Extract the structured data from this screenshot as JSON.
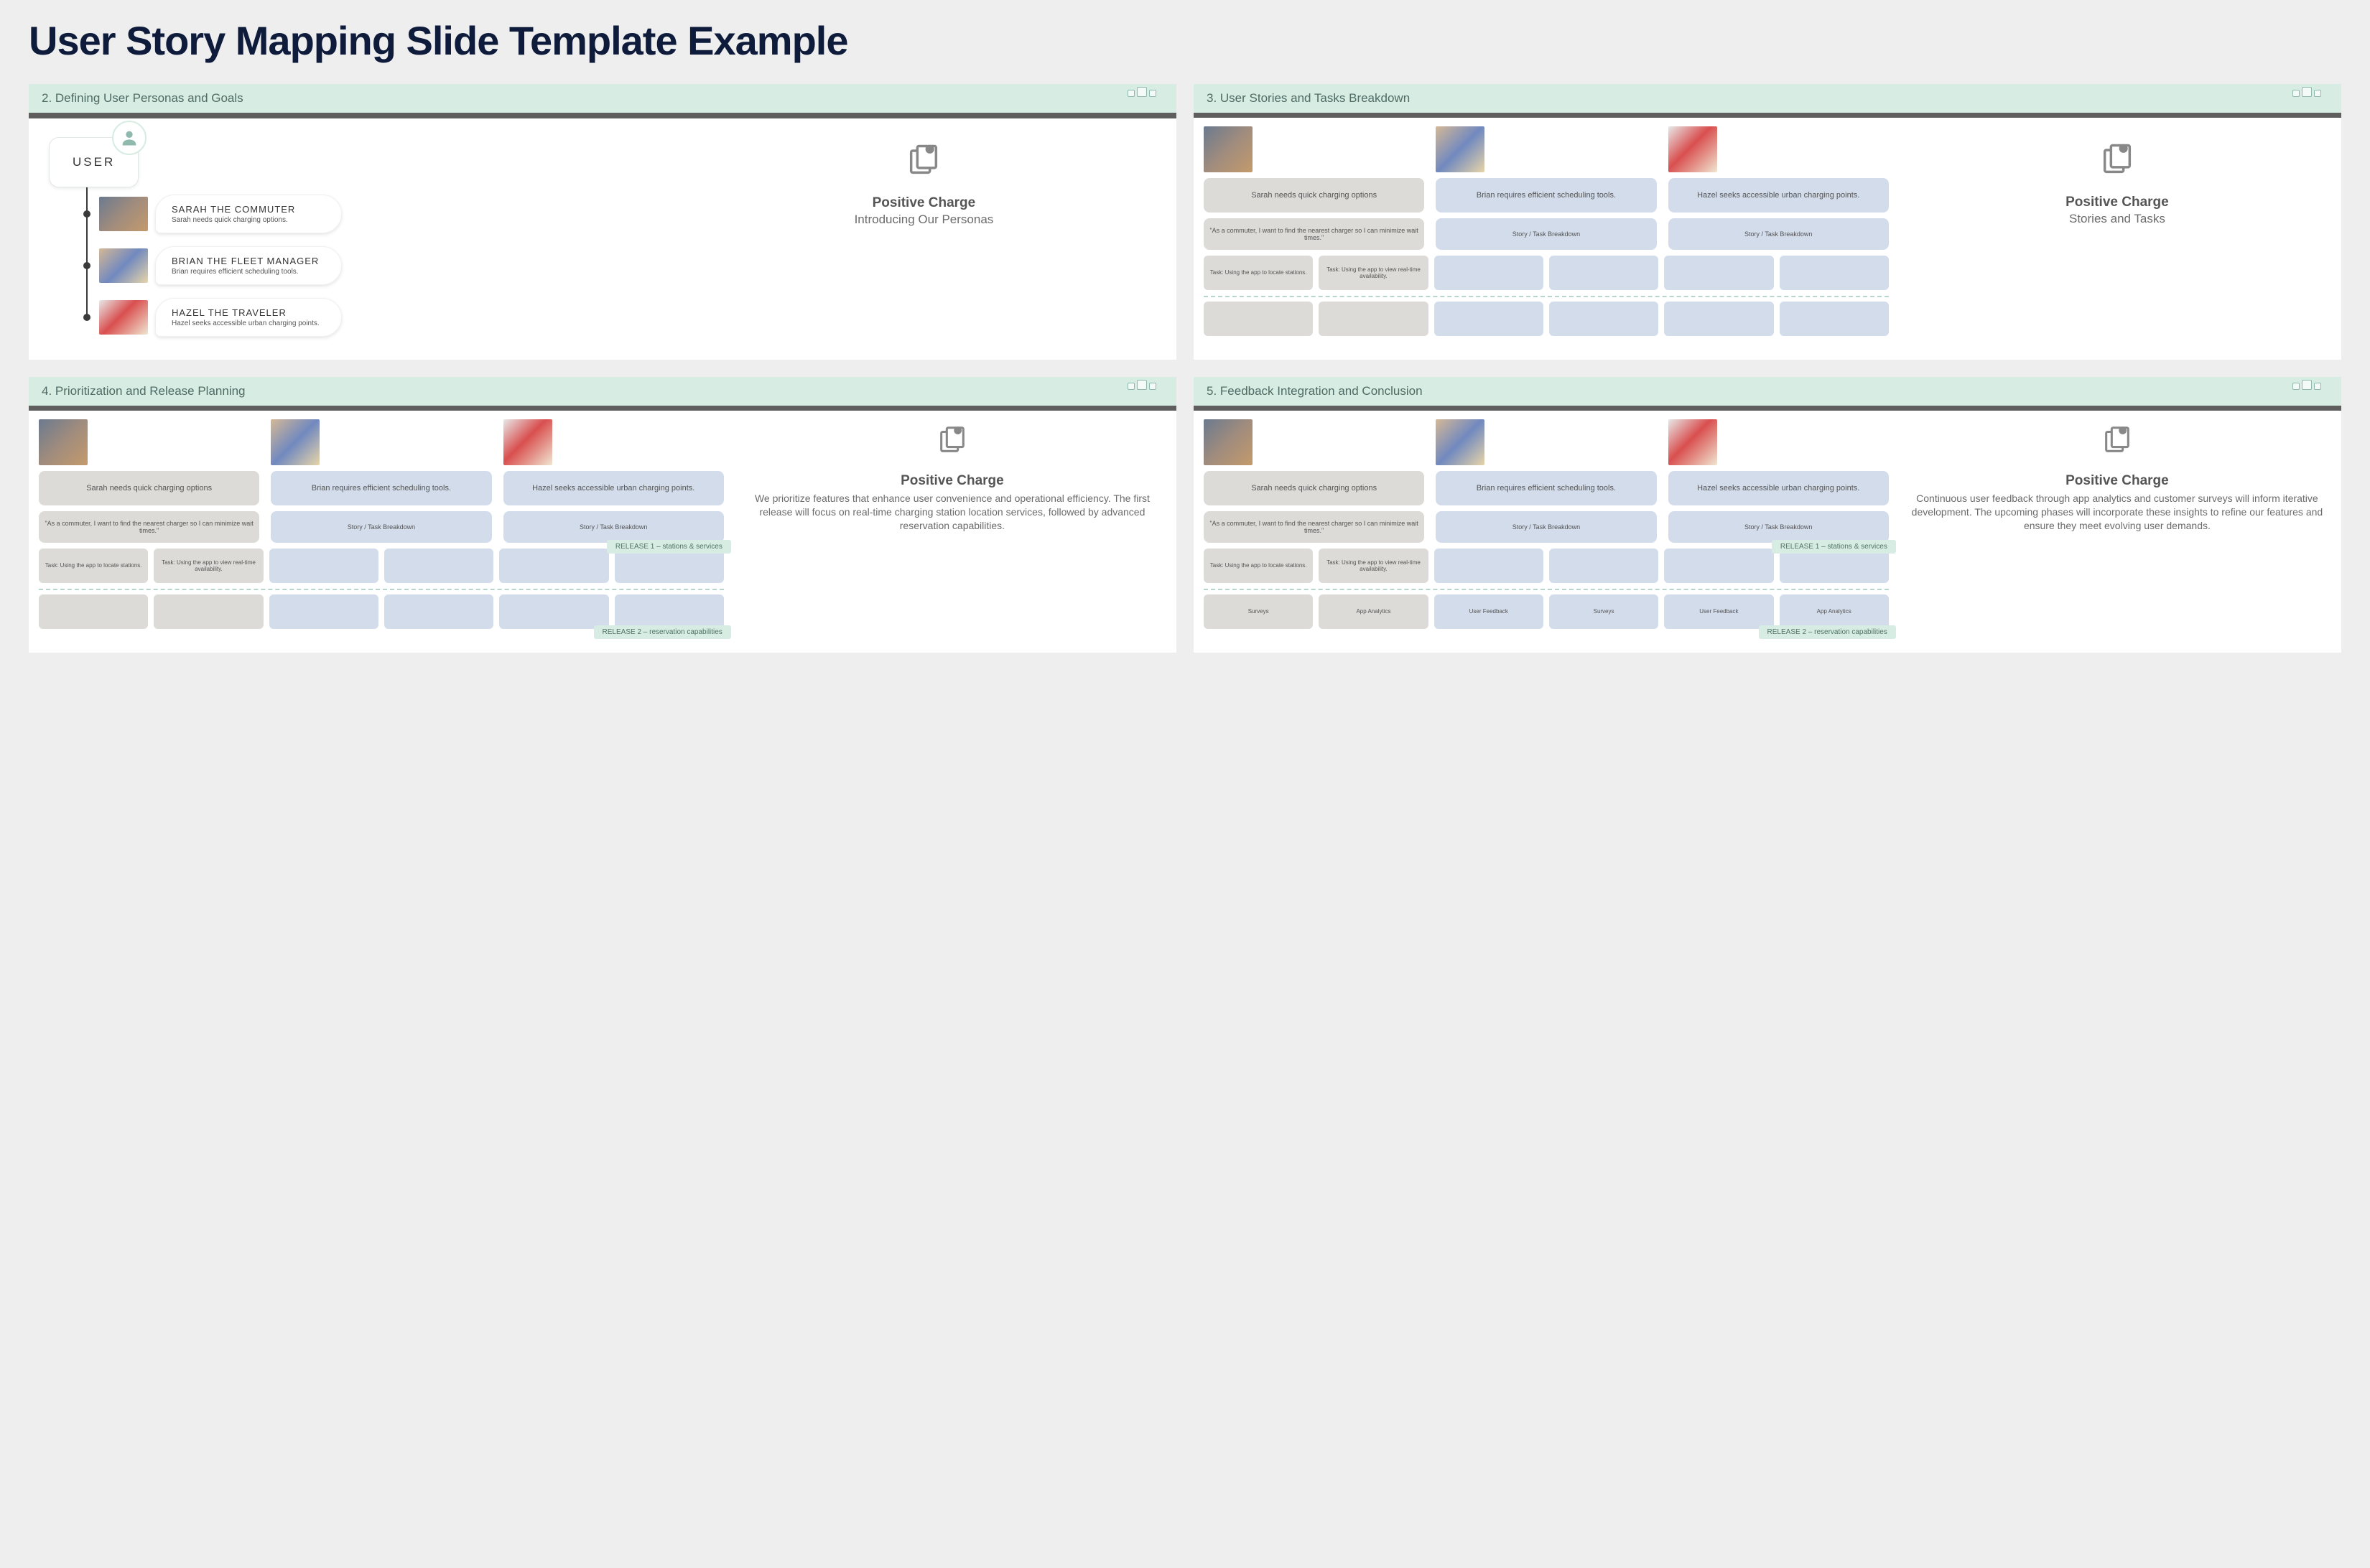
{
  "title": "User Story Mapping Slide Template Example",
  "colors": {
    "page_bg": "#eeeeef",
    "header_bg": "#d7ece2",
    "header_text": "#4f6b66",
    "sep_bar": "#5e5e5e",
    "gray_card": "#dcdbd8",
    "blue_card": "#d2dceb",
    "accent_dash": "#b9d6cc",
    "title_color": "#0e1b3b"
  },
  "slide2": {
    "header": "2. Defining User Personas and Goals",
    "root_label": "USER",
    "personas": [
      {
        "name": "SARAH THE COMMUTER",
        "desc": "Sarah needs quick charging options.",
        "thumb": "sarah"
      },
      {
        "name": "BRIAN THE FLEET MANAGER",
        "desc": "Brian requires efficient scheduling tools.",
        "thumb": "brian"
      },
      {
        "name": "HAZEL THE TRAVELER",
        "desc": "Hazel seeks accessible urban charging points.",
        "thumb": "hazel"
      }
    ],
    "pc_title": "Positive Charge",
    "pc_sub": "Introducing Our Personas"
  },
  "slide3": {
    "header": "3. User Stories and Tasks Breakdown",
    "columns": [
      {
        "thumb": "sarah",
        "need": "Sarah needs quick charging options",
        "need_color": "gray",
        "story": "\"As a commuter, I want to find the nearest charger so I can minimize wait times.\"",
        "story_color": "gray"
      },
      {
        "thumb": "brian",
        "need": "Brian requires efficient scheduling tools.",
        "need_color": "blue",
        "story": "Story / Task Breakdown",
        "story_color": "blue"
      },
      {
        "thumb": "hazel",
        "need": "Hazel seeks accessible urban charging points.",
        "need_color": "blue",
        "story": "Story / Task Breakdown",
        "story_color": "blue"
      }
    ],
    "tasks_row": [
      {
        "label": "Task: Using the app to locate stations.",
        "color": "gray"
      },
      {
        "label": "Task: Using the app to view real-time availability.",
        "color": "gray"
      },
      {
        "label": "",
        "color": "blue"
      },
      {
        "label": "",
        "color": "blue"
      },
      {
        "label": "",
        "color": "blue"
      },
      {
        "label": "",
        "color": "blue"
      }
    ],
    "release_row": [
      {
        "label": "",
        "color": "gray"
      },
      {
        "label": "",
        "color": "gray"
      },
      {
        "label": "",
        "color": "blue"
      },
      {
        "label": "",
        "color": "blue"
      },
      {
        "label": "",
        "color": "blue"
      },
      {
        "label": "",
        "color": "blue"
      }
    ],
    "pc_title": "Positive Charge",
    "pc_sub": "Stories and Tasks"
  },
  "slide4": {
    "header": "4. Prioritization and Release Planning",
    "release1_tag": "RELEASE 1 – stations & services",
    "release2_tag": "RELEASE 2 – reservation capabilities",
    "columns": [
      {
        "thumb": "sarah",
        "need": "Sarah needs quick charging options",
        "need_color": "gray",
        "story": "\"As a commuter, I want to find the nearest charger so I can minimize wait times.\"",
        "story_color": "gray"
      },
      {
        "thumb": "brian",
        "need": "Brian requires efficient scheduling tools.",
        "need_color": "blue",
        "story": "Story / Task Breakdown",
        "story_color": "blue"
      },
      {
        "thumb": "hazel",
        "need": "Hazel seeks accessible urban charging points.",
        "need_color": "blue",
        "story": "Story / Task Breakdown",
        "story_color": "blue"
      }
    ],
    "tasks_row": [
      {
        "label": "Task: Using the app to locate stations.",
        "color": "gray"
      },
      {
        "label": "Task: Using the app to view real-time availability.",
        "color": "gray"
      },
      {
        "label": "",
        "color": "blue"
      },
      {
        "label": "",
        "color": "blue"
      },
      {
        "label": "",
        "color": "blue"
      },
      {
        "label": "",
        "color": "blue"
      }
    ],
    "release_row": [
      {
        "label": "",
        "color": "gray"
      },
      {
        "label": "",
        "color": "gray"
      },
      {
        "label": "",
        "color": "blue"
      },
      {
        "label": "",
        "color": "blue"
      },
      {
        "label": "",
        "color": "blue"
      },
      {
        "label": "",
        "color": "blue"
      }
    ],
    "pc_title": "Positive Charge",
    "pc_body": "We prioritize features that enhance user convenience and operational efficiency. The first release will focus on real-time charging station location services, followed by advanced reservation capabilities."
  },
  "slide5": {
    "header": "5. Feedback Integration and Conclusion",
    "release1_tag": "RELEASE 1 – stations & services",
    "release2_tag": "RELEASE 2 – reservation capabilities",
    "columns": [
      {
        "thumb": "sarah",
        "need": "Sarah needs quick charging options",
        "need_color": "gray",
        "story": "\"As a commuter, I want to find the nearest charger so I can minimize wait times.\"",
        "story_color": "gray"
      },
      {
        "thumb": "brian",
        "need": "Brian requires efficient scheduling tools.",
        "need_color": "blue",
        "story": "Story / Task Breakdown",
        "story_color": "blue"
      },
      {
        "thumb": "hazel",
        "need": "Hazel seeks accessible urban charging points.",
        "need_color": "blue",
        "story": "Story / Task Breakdown",
        "story_color": "blue"
      }
    ],
    "tasks_row": [
      {
        "label": "Task: Using the app to locate stations.",
        "color": "gray"
      },
      {
        "label": "Task: Using the app to view real-time availability.",
        "color": "gray"
      },
      {
        "label": "",
        "color": "blue"
      },
      {
        "label": "",
        "color": "blue"
      },
      {
        "label": "",
        "color": "blue"
      },
      {
        "label": "",
        "color": "blue"
      }
    ],
    "release_row": [
      {
        "label": "Surveys",
        "color": "gray"
      },
      {
        "label": "App Analytics",
        "color": "gray"
      },
      {
        "label": "User Feedback",
        "color": "blue"
      },
      {
        "label": "Surveys",
        "color": "blue"
      },
      {
        "label": "User Feedback",
        "color": "blue"
      },
      {
        "label": "App Analytics",
        "color": "blue"
      }
    ],
    "pc_title": "Positive Charge",
    "pc_body": "Continuous user feedback through app analytics and customer surveys will inform iterative development. The upcoming phases will incorporate these insights to refine our features and ensure they meet evolving user demands."
  }
}
